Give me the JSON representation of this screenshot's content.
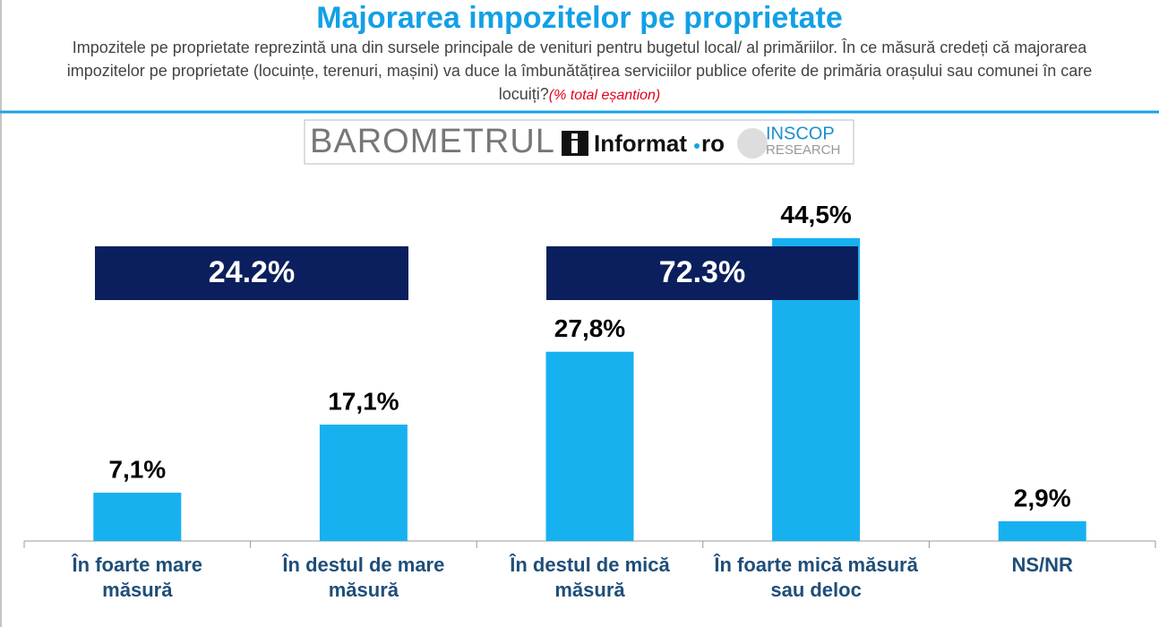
{
  "chart_data": {
    "type": "bar",
    "title": "Majorarea impozitelor pe proprietate",
    "subtitle": "Impozitele pe proprietate reprezintă una din sursele principale de venituri pentru bugetul local/ al primăriilor. În ce măsură credeți că majorarea impozitelor pe proprietate (locuințe, terenuri, mașini) va duce la îmbunătățirea serviciilor publice oferite de primăria orașului sau comunei în care locuiți?",
    "subtitle_note": "(% total eșantion)",
    "logo": {
      "barometer": "BAROMETRUL",
      "brand": "Informat",
      "brand_suffix": "ro",
      "partner": "INSCOP",
      "partner_sub": "RESEARCH"
    },
    "categories": [
      "În foarte mare măsură",
      "În destul de mare măsură",
      "În destul de mică măsură",
      "În foarte mică măsură sau deloc",
      "NS/NR"
    ],
    "values": [
      7.1,
      17.1,
      27.8,
      44.5,
      2.9
    ],
    "value_labels": [
      "7,1%",
      "17,1%",
      "27,8%",
      "44,5%",
      "2,9%"
    ],
    "color": "#17b1f0",
    "group_labels": [
      "24.2%",
      "72.3%"
    ]
  }
}
